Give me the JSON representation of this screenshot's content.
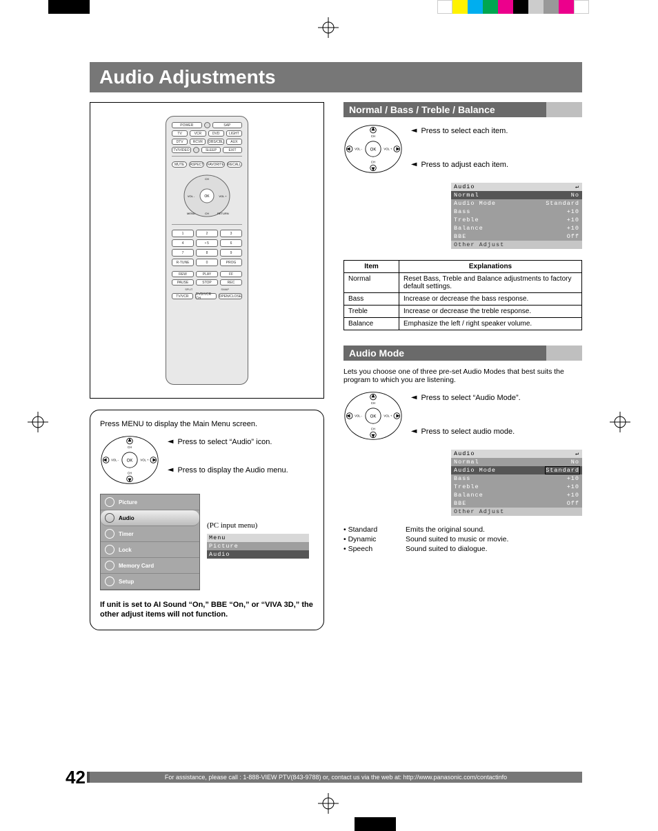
{
  "page": {
    "number": "42",
    "title": "Audio Adjustments",
    "footer": "For assistance, please call : 1-888-VIEW PTV(843-9788) or, contact us via the web at: http://www.panasonic.com/contactinfo"
  },
  "swatch_colors": [
    "#ffffff",
    "#fff200",
    "#00aeef",
    "#00a651",
    "#ec008c",
    "#000000",
    "#999999",
    "#cccccc",
    "#ffffff",
    "#ffffff"
  ],
  "remote": {
    "rows_top": [
      [
        "POWER",
        " ",
        "SAP"
      ],
      [
        "TV",
        "VCR",
        "DVD",
        "LIGHT"
      ],
      [
        "DTV",
        "RCVR",
        "DBS/CBL",
        "AUX"
      ],
      [
        "TV/VIDEO",
        " ",
        "SLEEP",
        "EXIT"
      ]
    ],
    "rows_func": [
      [
        "MUTE",
        "ASPECT",
        "FAVORITE",
        "RECALL"
      ]
    ],
    "nav_labels": {
      "up": "CH",
      "down": "CH",
      "left": "VOL -",
      "right": "VOL +",
      "center": "OK",
      "menu": "MENU",
      "return": "RETURN"
    },
    "keypad": [
      [
        "1",
        "2",
        "3"
      ],
      [
        "4",
        "• 5",
        "6"
      ],
      [
        "7",
        "8",
        "9"
      ],
      [
        "R-TUNE",
        "0",
        "PROG"
      ]
    ],
    "transport": [
      [
        "REW",
        "PLAY",
        "FF"
      ],
      [
        "PAUSE",
        "STOP",
        "REC"
      ]
    ],
    "bottom": [
      "SPLIT",
      "SWAP",
      "TV/VCR",
      "DVD/VCR CH",
      "OPEN/CLOSE"
    ]
  },
  "menu_box": {
    "intro": "Press MENU to display the Main Menu screen.",
    "step1": "Press to select “Audio” icon.",
    "step2": "Press to display the Audio menu.",
    "items": [
      "Picture",
      "Audio",
      "Timer",
      "Lock",
      "Memory Card",
      "Setup"
    ],
    "selected_index": 1,
    "pc_label": "(PC input menu)",
    "pc_menu": {
      "title": "Menu",
      "rows": [
        "Picture",
        "Audio"
      ],
      "selected_index": 1
    },
    "note": "If unit is set to AI Sound “On,” BBE “On,” or “VIVA 3D,” the other adjust items will not function."
  },
  "section1": {
    "header": "Normal / Bass / Treble / Balance",
    "step1": "Press to select each item.",
    "step2": "Press to adjust each item.",
    "osd": {
      "title": "Audio",
      "rows": [
        {
          "k": "Normal",
          "v": "No",
          "sel": true
        },
        {
          "k": "Audio Mode",
          "v": "Standard"
        },
        {
          "k": "Bass",
          "v": "+10"
        },
        {
          "k": "Treble",
          "v": "+10"
        },
        {
          "k": "Balance",
          "v": "+10"
        },
        {
          "k": "BBE",
          "v": "Off"
        },
        {
          "k": "Other Adjust",
          "v": "",
          "last": true
        }
      ]
    },
    "table_headers": [
      "Item",
      "Explanations"
    ],
    "table_rows": [
      [
        "Normal",
        "Reset Bass, Treble and Balance adjustments to factory default settings."
      ],
      [
        "Bass",
        "Increase or decrease the bass response."
      ],
      [
        "Treble",
        "Increase or decrease the treble response."
      ],
      [
        "Balance",
        "Emphasize the left / right speaker volume."
      ]
    ]
  },
  "section2": {
    "header": "Audio Mode",
    "intro": "Lets you choose one of three pre-set Audio Modes that best suits the program to which you are listening.",
    "step1": "Press to select “Audio Mode”.",
    "step2": "Press to select audio mode.",
    "osd": {
      "title": "Audio",
      "rows": [
        {
          "k": "Normal",
          "v": "No"
        },
        {
          "k": "Audio Mode",
          "v": "Standard",
          "sel": true,
          "boxed": true
        },
        {
          "k": "Bass",
          "v": "+10"
        },
        {
          "k": "Treble",
          "v": "+10"
        },
        {
          "k": "Balance",
          "v": "+10"
        },
        {
          "k": "BBE",
          "v": "Off"
        },
        {
          "k": "Other Adjust",
          "v": "",
          "last": true
        }
      ]
    },
    "modes": [
      {
        "k": "• Standard",
        "v": "Emits the original sound."
      },
      {
        "k": "• Dynamic",
        "v": "Sound suited to music or movie."
      },
      {
        "k": "• Speech",
        "v": "Sound suited to dialogue."
      }
    ]
  },
  "dpad": {
    "up": "CH",
    "down": "CH",
    "left": "VOL -",
    "right": "VOL +",
    "center": "OK"
  }
}
